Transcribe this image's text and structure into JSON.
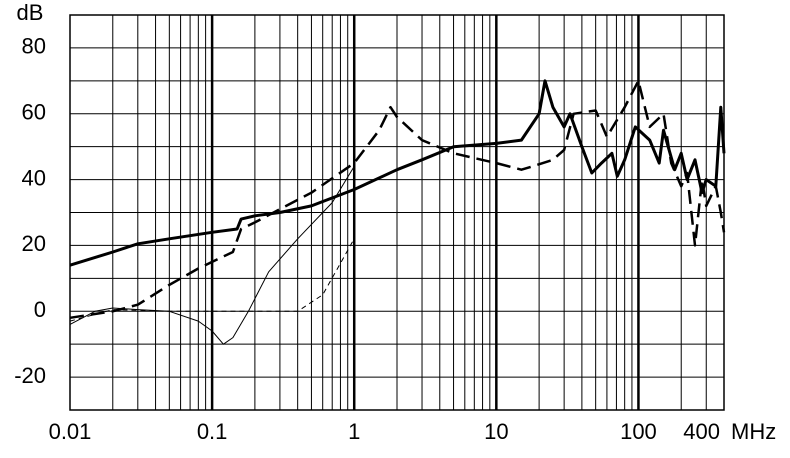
{
  "chart_data": {
    "type": "line",
    "y_label": "dB",
    "x_label": "MHz",
    "xlog": true,
    "grid": true,
    "xlim": [
      0.01,
      400
    ],
    "xticks": [
      0.01,
      0.1,
      1,
      10,
      100,
      400
    ],
    "ylim": [
      -30,
      90
    ],
    "yticks": [
      -20,
      0,
      20,
      40,
      60,
      80
    ],
    "series": [
      {
        "color": "#000000",
        "width": 3,
        "dash": "none",
        "x": [
          0.01,
          0.02,
          0.03,
          0.05,
          0.1,
          0.15,
          0.16,
          0.2,
          0.3,
          0.5,
          1,
          2,
          3,
          5,
          10,
          15,
          20,
          22,
          25,
          30,
          33,
          40,
          47,
          55,
          65,
          71,
          80,
          95,
          120,
          140,
          150,
          180,
          200,
          220,
          250,
          280,
          300,
          350,
          380,
          400
        ],
        "values": [
          14,
          18,
          20.5,
          22,
          24,
          25,
          28,
          29,
          30,
          32,
          37,
          43,
          46,
          50,
          51,
          52,
          60,
          70,
          62,
          56,
          60,
          50,
          42,
          45,
          48,
          41,
          46,
          56,
          52,
          45,
          55,
          43,
          48,
          40,
          46,
          36,
          40,
          38,
          62,
          48
        ]
      },
      {
        "color": "#000000",
        "width": 2.5,
        "dash": "14 7",
        "x": [
          0.01,
          0.02,
          0.03,
          0.05,
          0.08,
          0.1,
          0.14,
          0.16,
          0.2,
          0.3,
          0.5,
          1,
          1.5,
          1.8,
          2,
          3,
          5,
          10,
          15,
          18,
          25,
          30,
          35,
          50,
          60,
          80,
          100,
          120,
          150,
          170,
          200,
          220,
          250,
          280,
          300,
          350,
          380,
          400
        ],
        "values": [
          -2,
          0,
          2,
          8,
          13,
          15,
          18,
          25,
          27,
          31,
          36,
          45,
          55,
          62,
          59,
          52,
          48,
          45,
          43,
          44,
          46,
          49,
          60,
          61,
          53,
          62,
          70,
          56,
          60,
          45,
          38,
          42,
          20,
          40,
          32,
          38,
          30,
          24
        ]
      },
      {
        "color": "#000000",
        "width": 1,
        "dash": "none",
        "x": [
          0.01,
          0.015,
          0.02,
          0.03,
          0.05,
          0.08,
          0.1,
          0.12,
          0.14,
          0.18,
          0.25,
          0.4,
          0.7,
          1
        ],
        "values": [
          -4,
          0,
          1,
          0.5,
          0,
          -3,
          -6,
          -10,
          -8,
          0,
          12,
          22,
          33,
          44
        ]
      },
      {
        "color": "#000000",
        "width": 1,
        "dash": "5 4",
        "x": [
          0.01,
          0.02,
          0.05,
          0.1,
          0.2,
          0.4,
          0.6,
          1
        ],
        "values": [
          -3,
          0.5,
          0,
          0,
          0,
          0,
          5,
          22
        ]
      }
    ]
  }
}
